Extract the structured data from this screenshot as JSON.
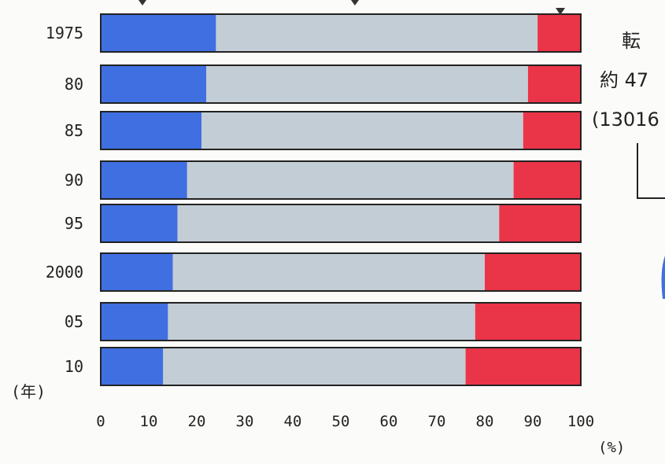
{
  "chart_data": {
    "type": "bar",
    "orientation": "horizontal",
    "stacked": true,
    "percent": true,
    "categories": [
      "1975",
      "80",
      "85",
      "90",
      "95",
      "2000",
      "05",
      "10"
    ],
    "series": [
      {
        "values": [
          24,
          22,
          21,
          18,
          16,
          15,
          14,
          13
        ]
      },
      {
        "values": [
          67,
          67,
          67,
          68,
          67,
          65,
          64,
          63
        ]
      },
      {
        "values": [
          9,
          11,
          12,
          14,
          17,
          20,
          22,
          24
        ]
      }
    ],
    "colors": [
      "#3f6fe0",
      "#c3cdd5",
      "#ea3448"
    ],
    "xticks": [
      "0",
      "10",
      "20",
      "30",
      "40",
      "50",
      "60",
      "70",
      "80",
      "90",
      "100"
    ],
    "xlim": [
      0,
      100
    ],
    "xunit": "(%)",
    "yunit": "(年)",
    "grid": false
  },
  "annotation": {
    "line1": "転",
    "line2": "約 47",
    "line3": "(13016"
  }
}
